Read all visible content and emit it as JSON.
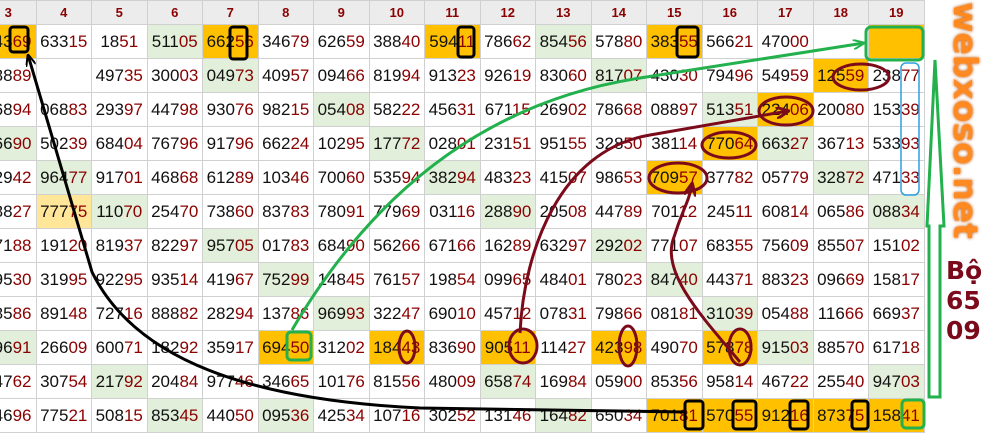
{
  "colors": {
    "hit": "#ffc000",
    "repeat": "#e2efda",
    "light": "#ffe699",
    "tail_digits": "#8b0000",
    "annotation_green": "#22b14c",
    "annotation_maroon": "#7b0a1a",
    "annotation_blue": "#2e9fe0"
  },
  "watermark": "webxoso.net",
  "annotation": {
    "combo_label": "Bộ  65 09"
  },
  "grid": {
    "headers": [
      "3",
      "4",
      "5",
      "6",
      "7",
      "8",
      "9",
      "10",
      "11",
      "12",
      "13",
      "14",
      "15",
      "16",
      "17",
      "18",
      "19"
    ],
    "rows": [
      {
        "cells": [
          "4369",
          "63315",
          "1851",
          "51105",
          "66256",
          "34679",
          "62659",
          "38840",
          "59411",
          "78662",
          "85456",
          "57880",
          "38355",
          "56621",
          "47000",
          "",
          ""
        ],
        "hl": [
          "o",
          "",
          "",
          "g",
          "o",
          "",
          "",
          "",
          "o",
          "",
          "g",
          "",
          "o",
          "",
          "",
          "",
          "o"
        ]
      },
      {
        "cells": [
          "8889",
          "",
          "49735",
          "30003",
          "04973",
          "40957",
          "09466",
          "81994",
          "91323",
          "92619",
          "83060",
          "81707",
          "43030",
          "79496",
          "54959",
          "12559",
          "23877"
        ],
        "hl": [
          "",
          "",
          "",
          "",
          "g",
          "",
          "",
          "",
          "",
          "",
          "",
          "g",
          "",
          "",
          "",
          "o",
          ""
        ]
      },
      {
        "cells": [
          "6894",
          "06883",
          "29397",
          "44798",
          "93076",
          "98215",
          "05408",
          "58222",
          "45631",
          "67115",
          "26902",
          "78668",
          "08897",
          "51351",
          "22406",
          "20080",
          "15339"
        ],
        "hl": [
          "",
          "",
          "",
          "",
          "",
          "",
          "g",
          "",
          "",
          "",
          "",
          "",
          "",
          "g",
          "o",
          "",
          ""
        ]
      },
      {
        "cells": [
          "6690",
          "50239",
          "68404",
          "76796",
          "91796",
          "66224",
          "10295",
          "17772",
          "02801",
          "23151",
          "95155",
          "32850",
          "38114",
          "77064",
          "66327",
          "36713",
          "53393"
        ],
        "hl": [
          "g",
          "",
          "",
          "",
          "",
          "",
          "",
          "g",
          "",
          "",
          "",
          "",
          "",
          "o",
          "g",
          "",
          ""
        ]
      },
      {
        "cells": [
          "2942",
          "96477",
          "91701",
          "46868",
          "61289",
          "10346",
          "70060",
          "53594",
          "38294",
          "48323",
          "41507",
          "98653",
          "70957",
          "37782",
          "05779",
          "32872",
          "47133"
        ],
        "hl": [
          "",
          "g",
          "",
          "",
          "",
          "",
          "",
          "",
          "g",
          "",
          "",
          "",
          "o",
          "",
          "",
          "g",
          ""
        ]
      },
      {
        "cells": [
          "8827",
          "77775",
          "11070",
          "25470",
          "73860",
          "83783",
          "78091",
          "77969",
          "03116",
          "28890",
          "20508",
          "44789",
          "70112",
          "24511",
          "60814",
          "06586",
          "08834"
        ],
        "hl": [
          "",
          "y",
          "g",
          "",
          "",
          "",
          "",
          "",
          "",
          "g",
          "",
          "",
          "",
          "",
          "",
          "",
          "g"
        ]
      },
      {
        "cells": [
          "7188",
          "19120",
          "81937",
          "82297",
          "95705",
          "01783",
          "68490",
          "56266",
          "67166",
          "16289",
          "63297",
          "29202",
          "77107",
          "68355",
          "75609",
          "85507",
          "15102"
        ],
        "hl": [
          "",
          "",
          "",
          "",
          "g",
          "",
          "",
          "",
          "",
          "",
          "",
          "g",
          "",
          "",
          "",
          "",
          ""
        ]
      },
      {
        "cells": [
          "9530",
          "31995",
          "92295",
          "93514",
          "41967",
          "75299",
          "14845",
          "76157",
          "19854",
          "09965",
          "48401",
          "78023",
          "84740",
          "44371",
          "88323",
          "09669",
          "15817"
        ],
        "hl": [
          "",
          "",
          "",
          "",
          "",
          "g",
          "",
          "",
          "",
          "",
          "",
          "",
          "g",
          "",
          "",
          "",
          ""
        ]
      },
      {
        "cells": [
          "8586",
          "89148",
          "72716",
          "88882",
          "28294",
          "13786",
          "96993",
          "32247",
          "69010",
          "45712",
          "07831",
          "79866",
          "08181",
          "31039",
          "05488",
          "11666",
          "66937"
        ],
        "hl": [
          "",
          "",
          "",
          "",
          "",
          "",
          "g",
          "",
          "",
          "",
          "",
          "",
          "",
          "g",
          "",
          "",
          ""
        ]
      },
      {
        "cells": [
          "9691",
          "26609",
          "60071",
          "18292",
          "35917",
          "69450",
          "31202",
          "18443",
          "83690",
          "90511",
          "11427",
          "42398",
          "49070",
          "57878",
          "91503",
          "88570",
          "61718"
        ],
        "hl": [
          "g",
          "",
          "",
          "",
          "",
          "o",
          "",
          "o",
          "",
          "o",
          "",
          "o",
          "",
          "o",
          "g",
          "",
          ""
        ]
      },
      {
        "cells": [
          "4762",
          "30754",
          "21792",
          "20484",
          "97746",
          "34665",
          "10176",
          "81556",
          "48009",
          "65874",
          "16984",
          "05900",
          "85356",
          "95814",
          "46722",
          "25540",
          "94703"
        ],
        "hl": [
          "",
          "",
          "g",
          "",
          "",
          "",
          "",
          "",
          "",
          "g",
          "",
          "",
          "",
          "",
          "",
          "",
          "g"
        ]
      },
      {
        "cells": [
          "4696",
          "77521",
          "50815",
          "85345",
          "44050",
          "09536",
          "42534",
          "10716",
          "30252",
          "13146",
          "16482",
          "65034",
          "70181",
          "57055",
          "91216",
          "87375",
          "15841"
        ],
        "hl": [
          "",
          "",
          "",
          "g",
          "",
          "g",
          "",
          "",
          "",
          "",
          "g",
          "",
          "o",
          "o",
          "o",
          "o",
          "o"
        ]
      }
    ]
  }
}
